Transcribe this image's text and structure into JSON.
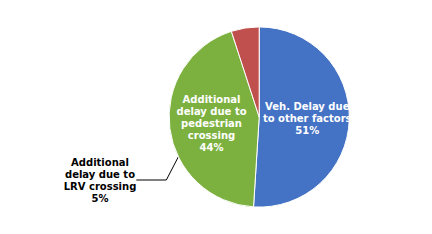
{
  "chart_data": {
    "type": "pie",
    "values": [
      51,
      44,
      5
    ],
    "value_labels": [
      "Veh. Delay due\nto other factors\n51%",
      "Additional\ndelay due to\npedestrian\ncrossing\n44%",
      "Additional\ndelay due to\nLRV crossing\n5%"
    ],
    "colors": [
      "#4472c4",
      "#7db13f",
      "#c0504d"
    ],
    "data_labels": true
  }
}
